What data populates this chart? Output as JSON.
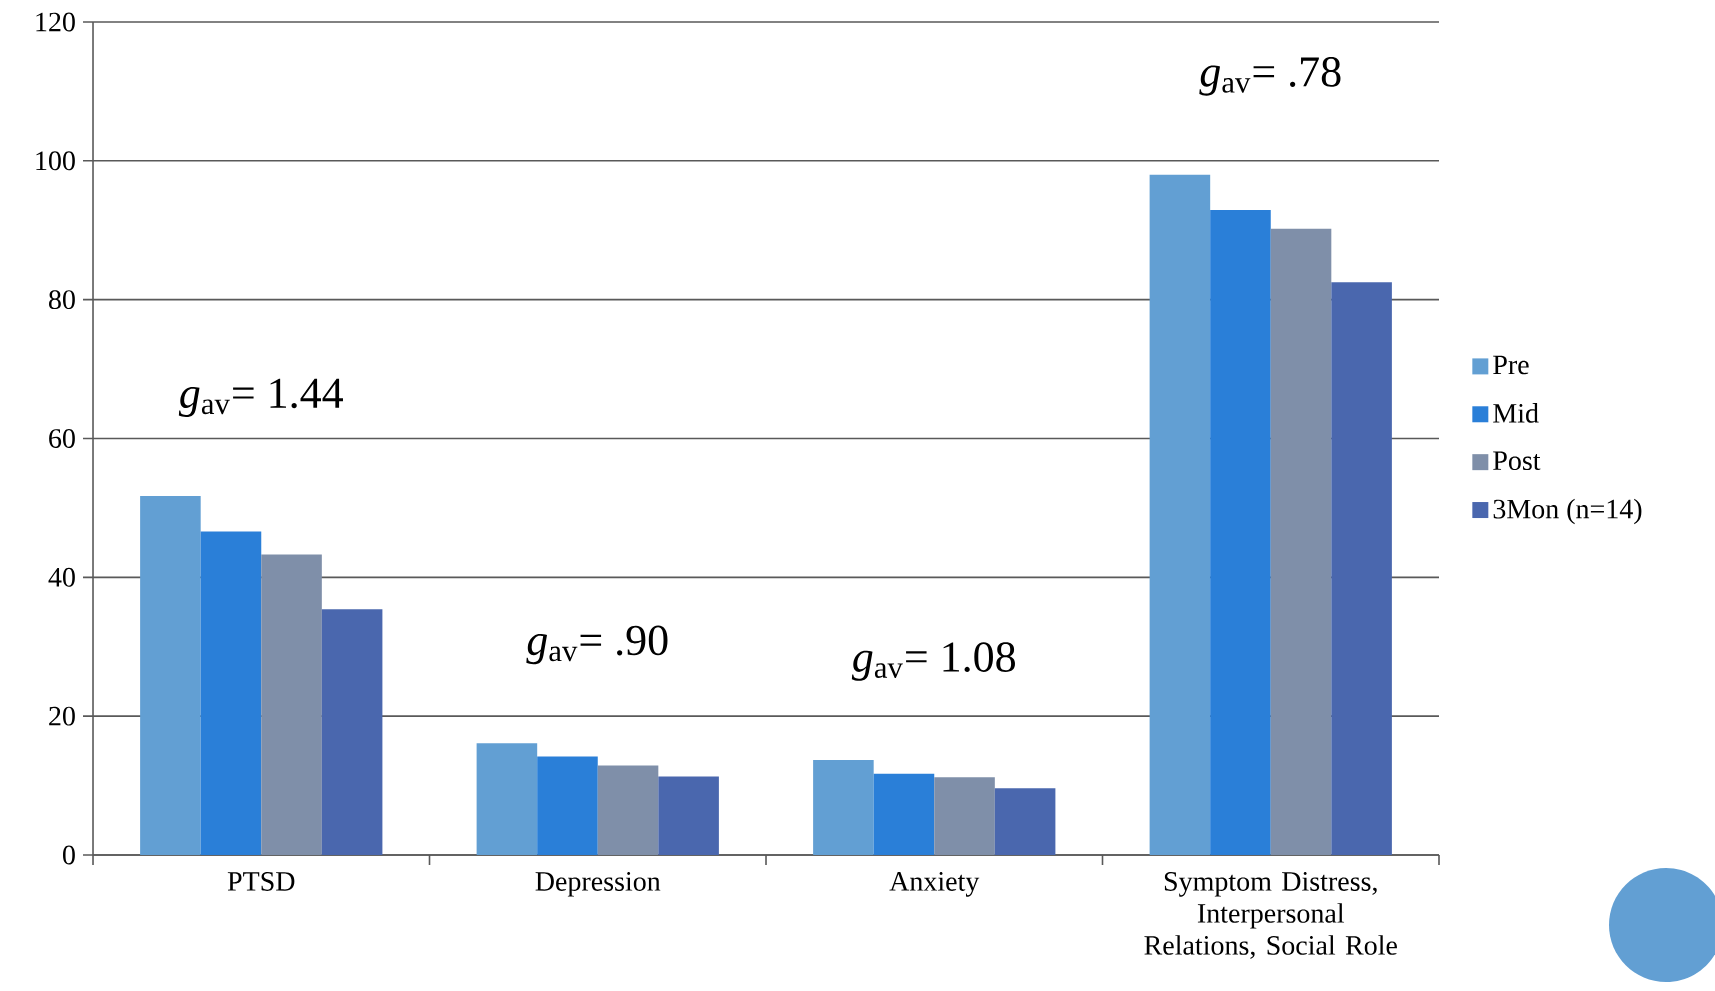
{
  "chart_data": {
    "type": "bar",
    "categories": [
      "PTSD",
      "Depression",
      "Anxiety",
      "Symptom Distress, Interpersonal Relations, Social Role"
    ],
    "series": [
      {
        "name": "Pre",
        "color": "#629fd3",
        "values": [
          51.7,
          16.1,
          13.7,
          98.0
        ]
      },
      {
        "name": "Mid",
        "color": "#2a7fd8",
        "values": [
          46.6,
          14.2,
          11.7,
          92.9
        ]
      },
      {
        "name": "Post",
        "color": "#7f8fa9",
        "values": [
          43.3,
          12.9,
          11.2,
          90.2
        ]
      },
      {
        "name": "3Mon (n=14)",
        "color": "#4a67ae",
        "values": [
          35.4,
          11.3,
          9.6,
          82.5
        ]
      }
    ],
    "ylim": [
      0,
      120
    ],
    "yticks": [
      0,
      20,
      40,
      60,
      80,
      100,
      120
    ],
    "grid": "y",
    "legend": "right",
    "annotations": [
      "*g*$_{av}$= 1.44",
      "*g*$_{av}$= .90",
      "*g*$_{av}$= 1.08",
      "*g*$_{av}$= .78"
    ]
  }
}
